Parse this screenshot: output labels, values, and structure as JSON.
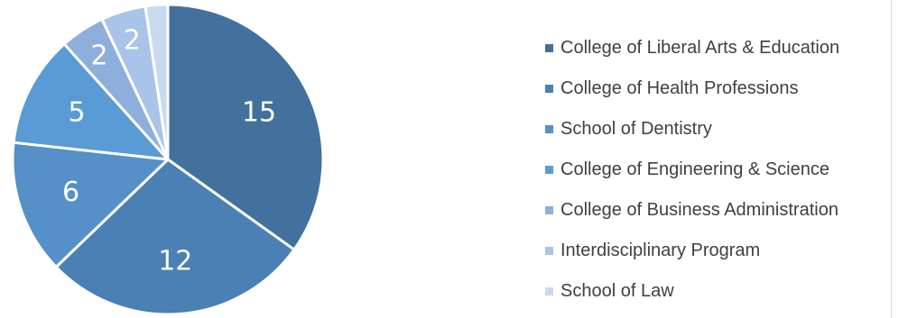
{
  "chart_data": {
    "type": "pie",
    "title": "",
    "legend_position": "right",
    "categories": [
      "College of Liberal Arts & Education",
      "College of Health Professions",
      "School of Dentistry",
      "College of Engineering & Science",
      "College of Business Administration",
      "Interdisciplinary Program",
      "School of Law"
    ],
    "values": [
      15,
      12,
      6,
      5,
      2,
      2,
      1
    ],
    "data_labels": [
      "15",
      "12",
      "6",
      "5",
      "2",
      "2",
      ""
    ],
    "colors": [
      "#41719c",
      "#4a80b4",
      "#5590c8",
      "#5b9bd5",
      "#8eaedb",
      "#a9c4e8",
      "#c9daf0"
    ],
    "start_angle": "12 o'clock",
    "direction": "clockwise"
  }
}
